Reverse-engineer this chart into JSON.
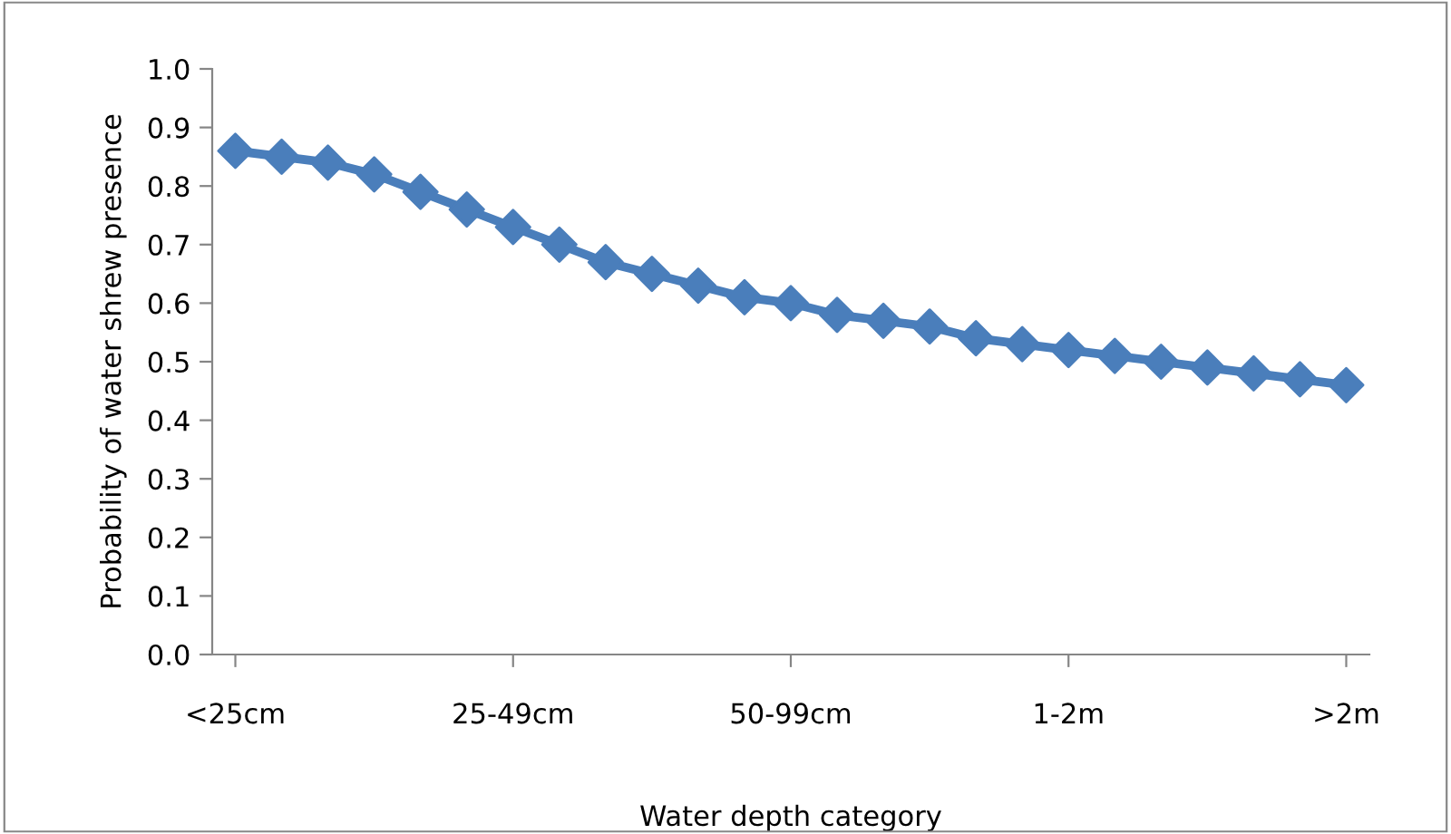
{
  "chart_data": {
    "type": "line",
    "xlabel": "Water depth category",
    "ylabel": "Probability of water shrew presence",
    "categories": [
      "<25cm",
      null,
      null,
      null,
      null,
      null,
      "25-49cm",
      null,
      null,
      null,
      null,
      null,
      "50-99cm",
      null,
      null,
      null,
      null,
      null,
      "1-2m",
      null,
      null,
      null,
      null,
      null,
      ">2m"
    ],
    "series": [
      {
        "color": "#4a7ebb",
        "values": [
          0.86,
          0.85,
          0.84,
          0.82,
          0.79,
          0.76,
          0.73,
          0.7,
          0.67,
          0.65,
          0.63,
          0.61,
          0.6,
          0.58,
          0.57,
          0.56,
          0.54,
          0.53,
          0.52,
          0.51,
          0.5,
          0.49,
          0.48,
          0.47,
          0.46
        ]
      }
    ],
    "ylim": [
      0,
      1
    ],
    "yticks": [
      {
        "value": 0,
        "label": "0.0"
      },
      {
        "value": 0.1,
        "label": "0.1"
      },
      {
        "value": 0.2,
        "label": "0.2"
      },
      {
        "value": 0.3,
        "label": "0.3"
      },
      {
        "value": 0.4,
        "label": "0.4"
      },
      {
        "value": 0.5,
        "label": "0.5"
      },
      {
        "value": 0.6,
        "label": "0.6"
      },
      {
        "value": 0.7,
        "label": "0.7"
      },
      {
        "value": 0.8,
        "label": "0.8"
      },
      {
        "value": 0.9,
        "label": "0.9"
      },
      {
        "value": 1,
        "label": "1.0"
      }
    ],
    "grid": false,
    "marker": "diamond",
    "line_style": "solid"
  }
}
